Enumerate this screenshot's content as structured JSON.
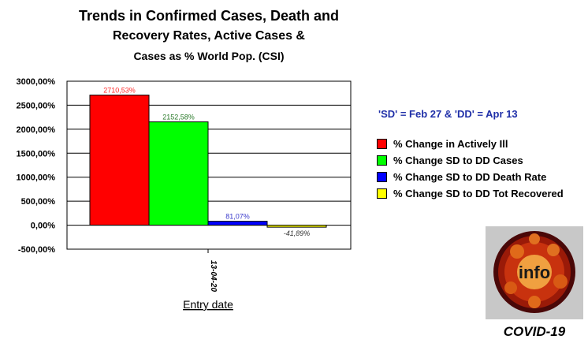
{
  "title": {
    "line1": "Trends in Confirmed Cases, Death and",
    "line2": "Recovery Rates, Active Cases &",
    "line3": "Cases as % World Pop. (CSI)"
  },
  "note": "'SD' = Feb 27 & 'DD' = Apr 13",
  "badge": {
    "word": "info",
    "caption": "COVID-19"
  },
  "chart_data": {
    "type": "bar",
    "title": "Trends in Confirmed Cases, Death and Recovery Rates, Active Cases & Cases as % World Pop. (CSI)",
    "xlabel": "Entry date",
    "ylabel": "",
    "categories": [
      "13-04-20"
    ],
    "ylim": [
      -500,
      3000
    ],
    "yticks": [
      3000,
      2500,
      2000,
      1500,
      1000,
      500,
      0,
      -500
    ],
    "ytick_labels": [
      "3000,00%",
      "2500,00%",
      "2000,00%",
      "1500,00%",
      "1000,00%",
      "500,00%",
      "0,00%",
      "-500,00%"
    ],
    "grid": true,
    "legend_position": "right",
    "series": [
      {
        "name": "% Change in Actively Ill",
        "values": [
          2710.53
        ],
        "label": "2710,53%",
        "color": "#ff0000",
        "label_color": "#ff2a2a"
      },
      {
        "name": "% Change SD to DD Cases",
        "values": [
          2152.58
        ],
        "label": "2152,58%",
        "color": "#00ff00",
        "label_color": "#2a7a2a"
      },
      {
        "name": "% Change SD to DD Death Rate",
        "values": [
          81.07
        ],
        "label": "81,07%",
        "color": "#0000ff",
        "label_color": "#3a3acc"
      },
      {
        "name": "% Change SD to DD Tot Recovered",
        "values": [
          -41.89
        ],
        "label": "-41,89%",
        "color": "#ffff00",
        "label_color": "#333333"
      }
    ]
  }
}
